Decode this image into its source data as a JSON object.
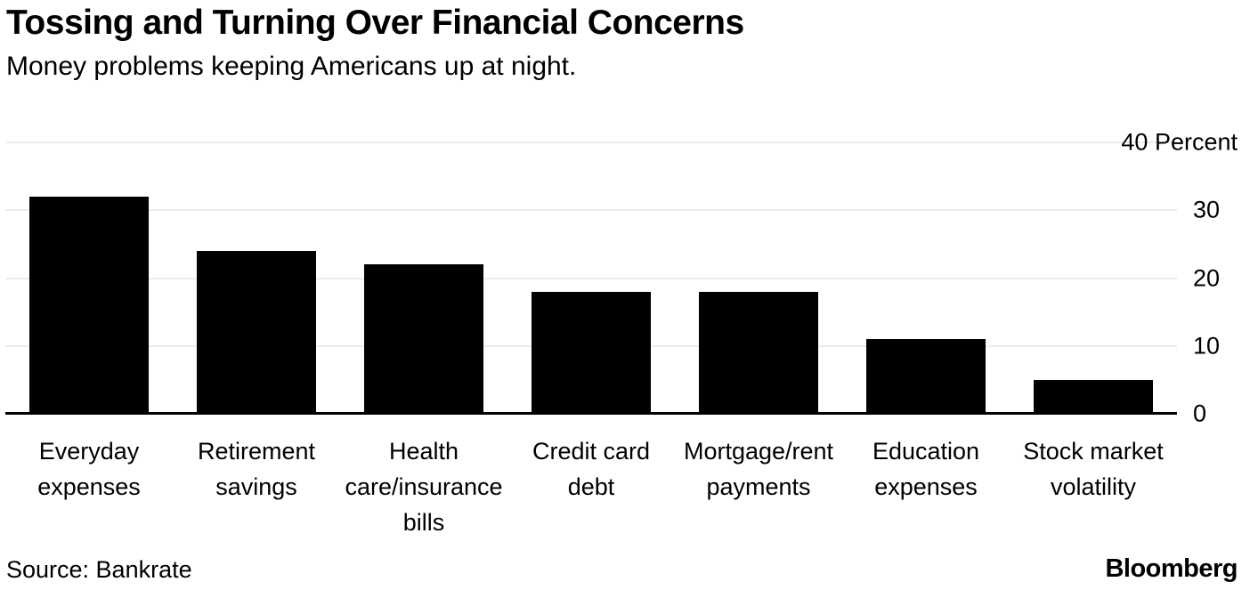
{
  "header": {
    "title": "Tossing and Turning Over Financial Concerns",
    "subtitle": "Money problems keeping Americans up at night."
  },
  "footer": {
    "source": "Source: Bankrate",
    "brand": "Bloomberg"
  },
  "chart_data": {
    "type": "bar",
    "title": "Tossing and Turning Over Financial Concerns",
    "subtitle": "Money problems keeping Americans up at night.",
    "categories": [
      "Everyday expenses",
      "Retirement savings",
      "Health care/insurance bills",
      "Credit card debt",
      "Mortgage/rent payments",
      "Education expenses",
      "Stock market volatility"
    ],
    "category_lines": [
      [
        "Everyday",
        "expenses"
      ],
      [
        "Retirement",
        "savings"
      ],
      [
        "Health",
        "care/insurance",
        "bills"
      ],
      [
        "Credit card",
        "debt"
      ],
      [
        "Mortgage/rent",
        "payments"
      ],
      [
        "Education",
        "expenses"
      ],
      [
        "Stock market",
        "volatility"
      ]
    ],
    "values": [
      32,
      24,
      22,
      18,
      18,
      11,
      5
    ],
    "xlabel": "",
    "ylabel": "Percent",
    "ylim": [
      0,
      40
    ],
    "yticks": [
      0,
      10,
      20,
      30,
      40
    ],
    "ytick_labels": [
      "0",
      "10",
      "20",
      "30",
      "40 Percent"
    ],
    "grid": true,
    "legend": "none",
    "bar_color": "#000000",
    "gridline_color": "#d9d9d9",
    "baseline_color": "#000000",
    "source": "Source: Bankrate",
    "brand": "Bloomberg"
  }
}
